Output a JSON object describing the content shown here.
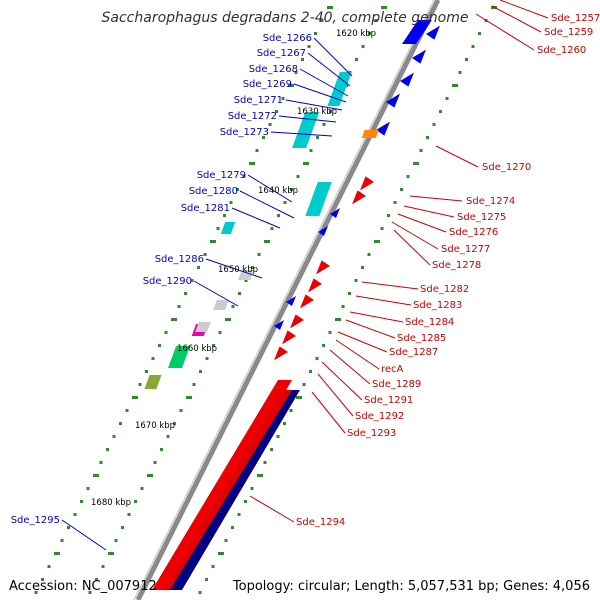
{
  "title": "Saccharophagus degradans 2-40, complete genome",
  "footer": {
    "accession": "Accession: NC_007912",
    "summary": "Topology: circular; Length: 5,057,531 bp; Genes: 4,056"
  },
  "colors": {
    "backbone": "#8a8a8a",
    "tick": "#2e8b2e",
    "forward_label": "#0000cc",
    "reverse_label": "#cc0000",
    "forward_gene": "#0000ee",
    "reverse_gene": "#ee0000",
    "cds_forward": "#00cccc",
    "cds_reverse": "#00cccc",
    "highlight_orange": "#ff8800",
    "highlight_magenta": "#ee00aa",
    "highlight_green": "#00cc66",
    "highlight_olive": "#88aa33",
    "grey": "#cccccc",
    "navy": "#000080"
  },
  "kbp_ticks": [
    "1620 kbp",
    "1630 kbp",
    "1640 kbp",
    "1650 kbp",
    "1660 kbp",
    "1670 kbp",
    "1680 kbp"
  ],
  "forward_labels": [
    "Sde_1266",
    "Sde_1267",
    "Sde_1268",
    "Sde_1269",
    "Sde_1271",
    "Sde_1272",
    "Sde_1273",
    "Sde_1279",
    "Sde_1280",
    "Sde_1281",
    "Sde_1286",
    "Sde_1290",
    "Sde_1295"
  ],
  "reverse_labels": [
    "Sde_1257",
    "Sde_1259",
    "Sde_1260",
    "Sde_1270",
    "Sde_1274",
    "Sde_1275",
    "Sde_1276",
    "Sde_1277",
    "Sde_1278",
    "Sde_1282",
    "Sde_1283",
    "Sde_1284",
    "Sde_1285",
    "Sde_1287",
    "recA",
    "Sde_1289",
    "Sde_1291",
    "Sde_1292",
    "Sde_1293",
    "Sde_1294"
  ]
}
